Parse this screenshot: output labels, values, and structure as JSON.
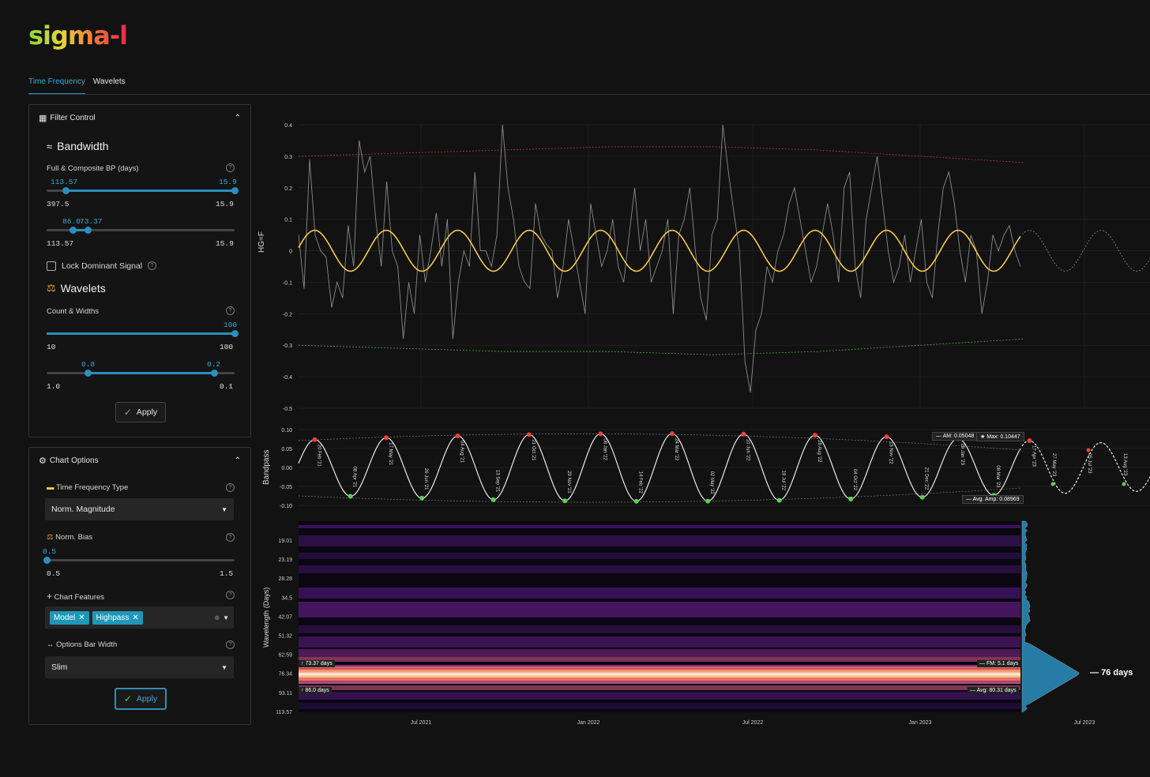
{
  "app": {
    "logo": "sigma-l"
  },
  "tabs": [
    {
      "label": "Time Frequency",
      "active": true
    },
    {
      "label": "Wavelets",
      "active": false
    }
  ],
  "filter_control": {
    "title": "Filter Control",
    "bandwidth": {
      "title": "Bandwidth",
      "field_label": "Full & Composite BP (days)",
      "full_slider": {
        "low_value": "113.57",
        "high_value": "15.9",
        "min_label": "397.5",
        "max_label": "15.9",
        "low_frac": 0.1,
        "high_frac": 1.0
      },
      "composite_slider": {
        "low_value": "86.0",
        "high_value": "73.37",
        "min_label": "113.57",
        "max_label": "15.9",
        "low_frac": 0.14,
        "high_frac": 0.22
      },
      "lock_label": "Lock Dominant Signal"
    },
    "wavelets": {
      "title": "Wavelets",
      "field_label": "Count & Widths",
      "count_slider": {
        "value": "100",
        "min_label": "10",
        "max_label": "100",
        "frac": 1.0
      },
      "width_slider": {
        "low_value": "0.8",
        "high_value": "0.2",
        "min_label": "1.0",
        "max_label": "0.1",
        "low_frac": 0.22,
        "high_frac": 0.89
      }
    },
    "apply_label": "Apply"
  },
  "chart_options": {
    "title": "Chart Options",
    "tf_type": {
      "label": "Time Frequency Type",
      "value": "Norm. Magnitude"
    },
    "norm_bias": {
      "label": "Norm. Bias",
      "value": "0.5",
      "min_label": "0.5",
      "max_label": "1.5",
      "frac": 0.0
    },
    "chart_features": {
      "label": "Chart Features",
      "chips": [
        "Model",
        "Highpass"
      ]
    },
    "bar_width": {
      "label": "Options Bar Width",
      "value": "Slim"
    },
    "apply_label": "Apply"
  },
  "colors": {
    "accent": "#2a8fbf",
    "model_line": "#f2c84b",
    "peak": "#e8423a",
    "trough": "#5ad05a"
  },
  "chart_data": [
    {
      "type": "line",
      "ylabel": "HG=F",
      "ylim": [
        -0.5,
        0.4
      ],
      "y_ticks": [
        "0.4",
        "0.3",
        "0.2",
        "0.1",
        "0",
        "-0.1",
        "-0.2",
        "-0.3",
        "-0.4",
        "-0.5"
      ],
      "model_period_days": 76,
      "model_amplitude": 0.065,
      "series": [
        {
          "values": [
            0.05,
            -0.12,
            0.29,
            0.05,
            0.0,
            -0.02,
            -0.18,
            -0.1,
            -0.15,
            0.08,
            -0.05,
            0.35,
            0.25,
            0.3,
            0.1,
            -0.05,
            0.22,
            0.0,
            -0.05,
            -0.28,
            -0.1,
            -0.2,
            0.05,
            -0.1,
            0.0,
            0.12,
            -0.05,
            0.1,
            -0.28,
            -0.1,
            0.0,
            -0.05,
            0.25,
            0.0,
            0.0,
            -0.05,
            0.05,
            0.4,
            0.2,
            0.1,
            -0.05,
            -0.1,
            -0.12,
            0.15,
            0.05,
            0.02,
            0.0,
            -0.15,
            -0.05,
            0.1,
            0.0,
            -0.1,
            -0.2,
            0.15,
            0.05,
            -0.05,
            0.0,
            0.1,
            -0.05,
            -0.1,
            0.05,
            0.2,
            0.0,
            0.1,
            -0.1,
            -0.05,
            0.0,
            0.1,
            -0.2,
            0.05,
            0.1,
            0.2,
            0.0,
            -0.15,
            -0.22,
            0.05,
            0.1,
            0.4,
            0.25,
            0.12,
            0.0,
            -0.35,
            -0.45,
            -0.25,
            -0.2,
            -0.05,
            -0.1,
            0.0,
            0.05,
            0.15,
            0.2,
            0.1,
            0.0,
            -0.1,
            -0.05,
            0.05,
            0.15,
            0.05,
            -0.1,
            0.2,
            0.25,
            -0.05,
            -0.15,
            0.1,
            0.2,
            0.3,
            0.15,
            0.0,
            -0.1,
            -0.05,
            0.05,
            -0.1,
            0.0,
            0.1,
            -0.1,
            -0.15,
            0.05,
            0.2,
            0.25,
            0.15,
            0.0,
            -0.1,
            0.05,
            0.0,
            -0.2,
            -0.1,
            0.05,
            0.0,
            0.05,
            0.08,
            0.0,
            -0.05
          ]
        }
      ],
      "upper_band": [
        0.3,
        0.31,
        0.32,
        0.33,
        0.33,
        0.32,
        0.3,
        0.28
      ],
      "lower_band": [
        -0.3,
        -0.31,
        -0.32,
        -0.32,
        -0.33,
        -0.32,
        -0.3,
        -0.28
      ]
    },
    {
      "type": "line",
      "ylabel": "Bandpass",
      "ylim": [
        -0.1,
        0.1
      ],
      "y_ticks": [
        "0.10",
        "0.05",
        "0.00",
        "-0.05",
        "-0.10"
      ],
      "peak_labels": [
        "20 Feb '21",
        "17 May '21",
        "04 Aug '21",
        "21 Oct '21",
        "08 Jan '22",
        "24 Mar '22",
        "10 Jun '22",
        "28 Aug '22",
        "13 Nov '22",
        "28 Jan '23",
        "17 Apr '23"
      ],
      "trough_labels": [
        "08 Apr '21",
        "26 Jun '21",
        "13 Sep '21",
        "29 Nov '21",
        "14 Feb '22",
        "02 May '22",
        "18 Jul '22",
        "04 Oct '22",
        "21 Dec '22",
        "08 Mar '23"
      ],
      "future_labels": [
        "27 May '23",
        "05 Jul '23",
        "13 Aug '23"
      ],
      "annotations": {
        "am": "AM: 0.05048",
        "max": "Max: 0.10447",
        "avg_amp": "Avg. Amp: 0.08969"
      }
    },
    {
      "type": "heatmap",
      "ylabel": "Wavelength (Days)",
      "y_ticks": [
        "19.01",
        "23.19",
        "28.28",
        "34.5",
        "42.07",
        "51.32",
        "62.59",
        "76.34",
        "93.11",
        "113.57"
      ],
      "x_ticks": [
        "Jul 2021",
        "Jan 2022",
        "Jul 2022",
        "Jan 2023",
        "Jul 2023"
      ],
      "annotations": {
        "upper": "73.37 days",
        "lower": "86.0 days",
        "fm": "FM: 5.1 days",
        "avg": "Avg: 80.31 days",
        "dominant": "76 days"
      }
    }
  ]
}
